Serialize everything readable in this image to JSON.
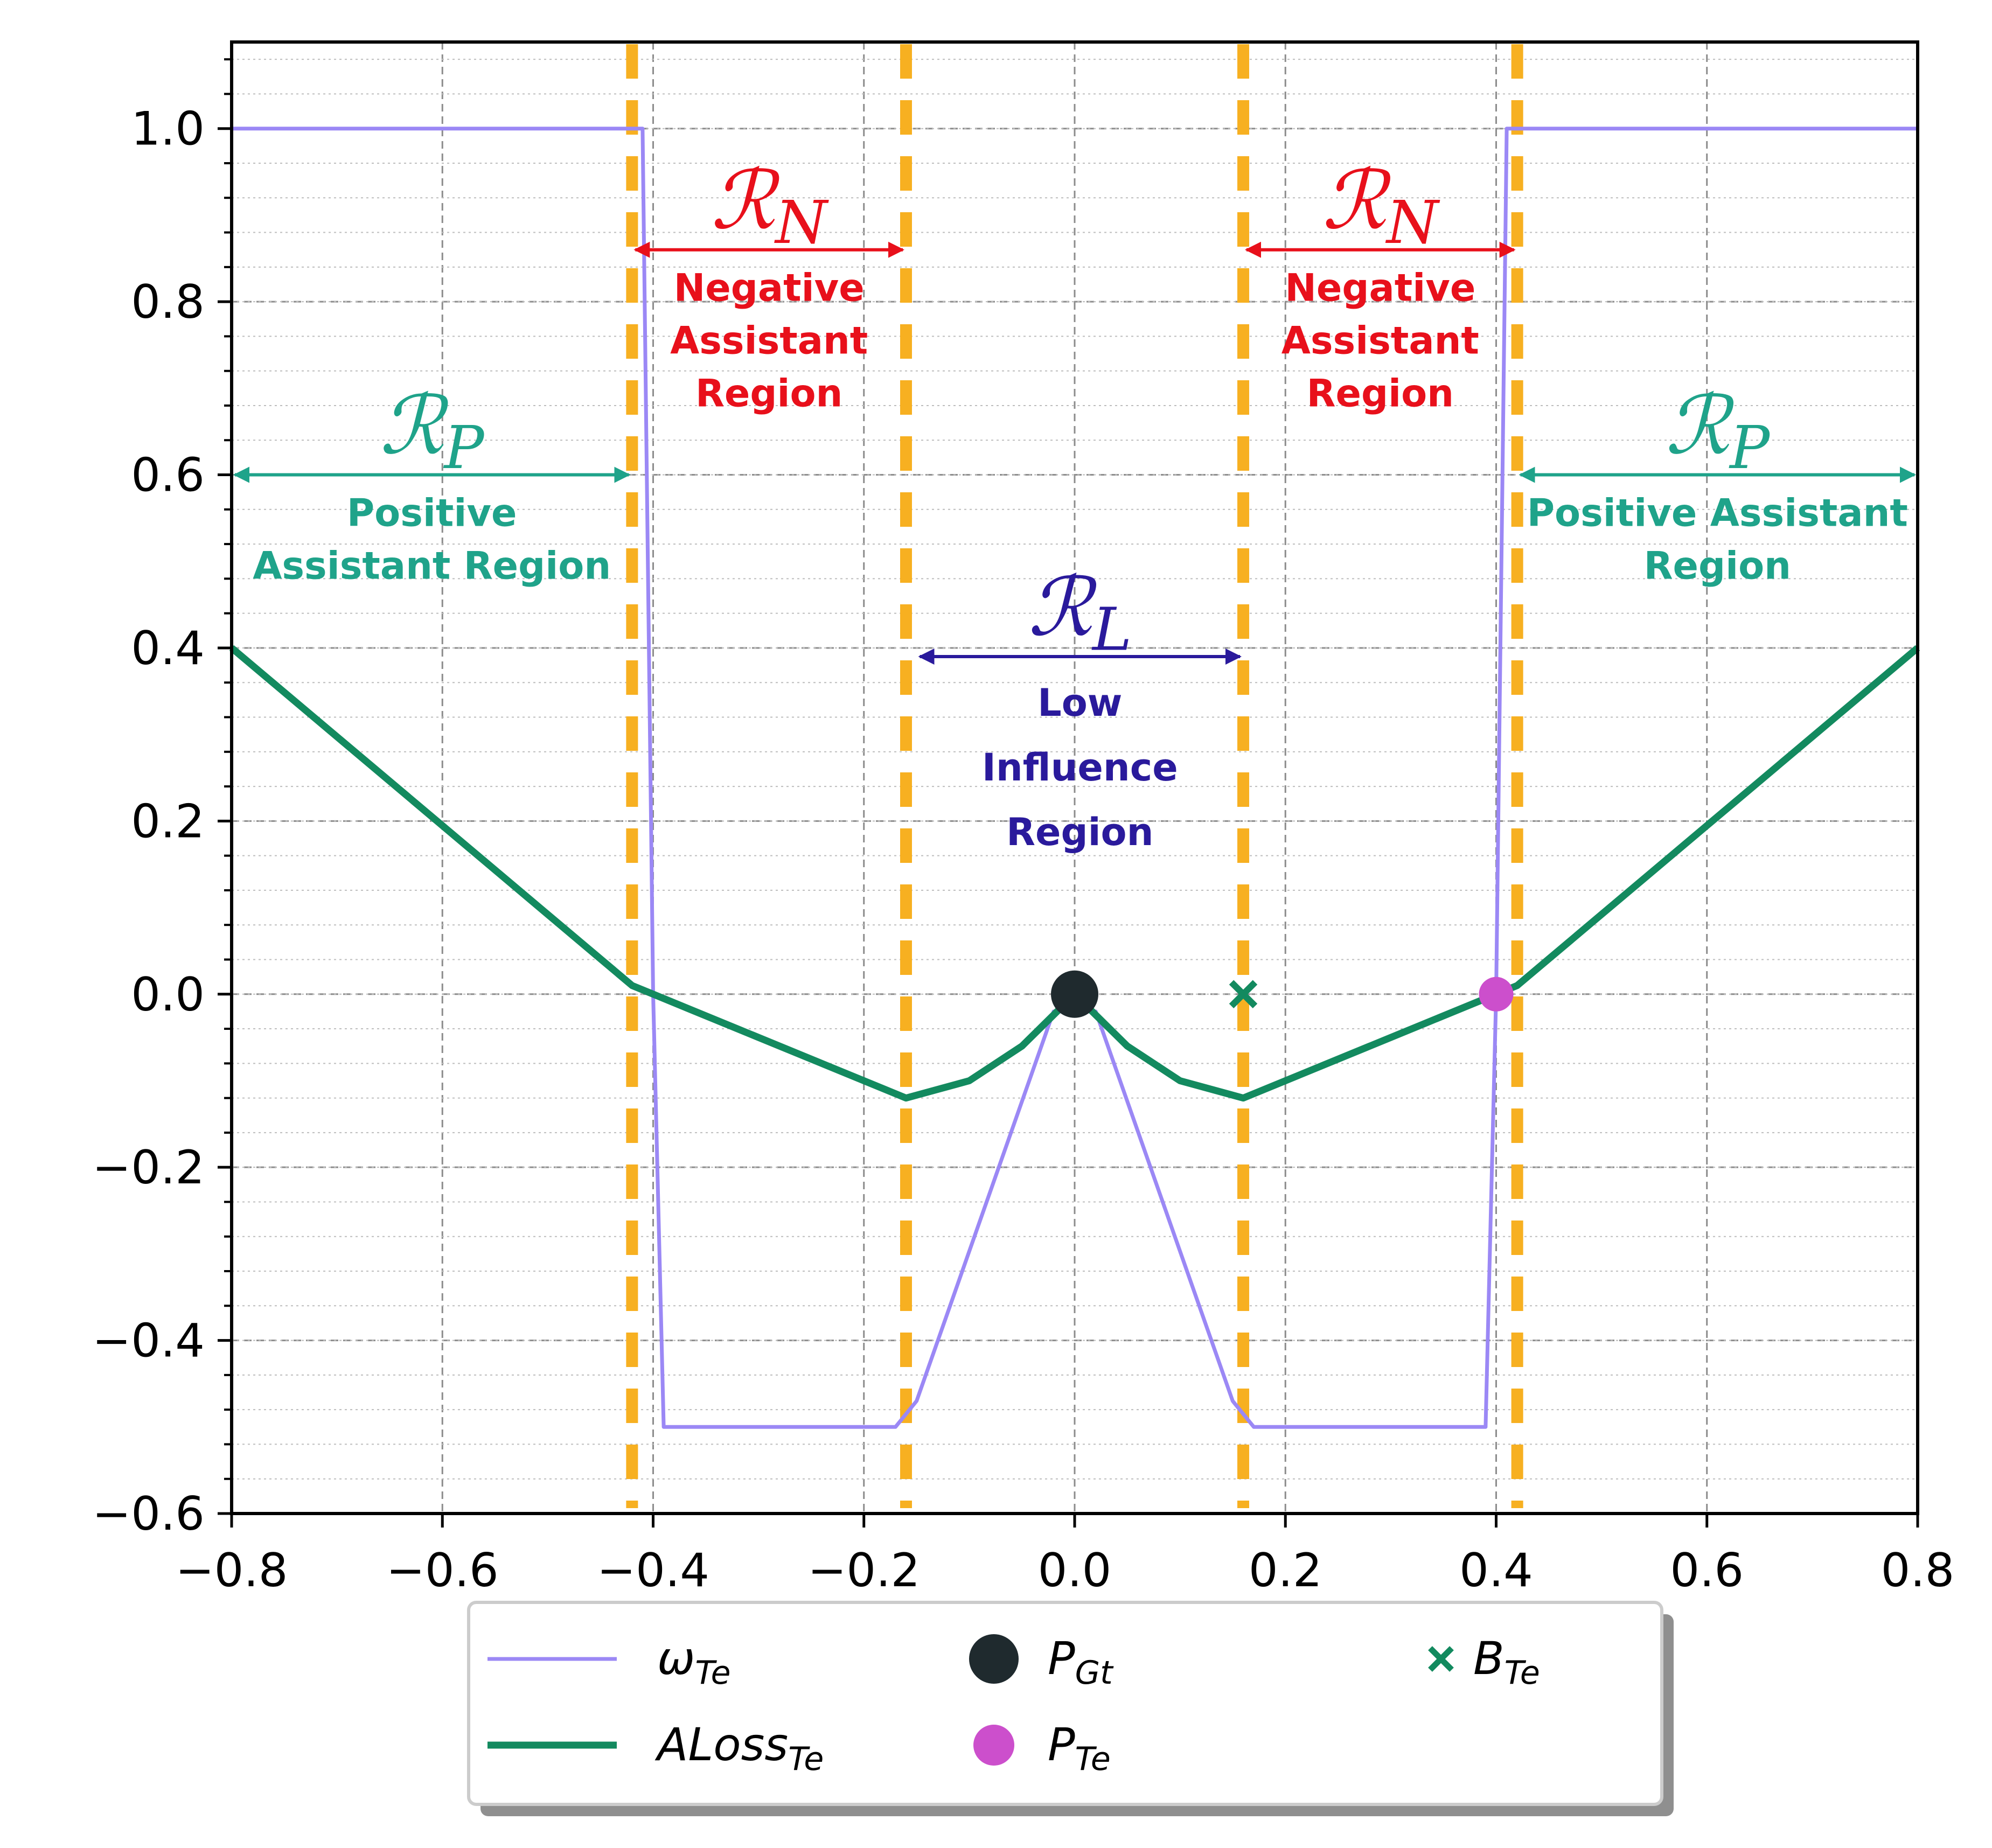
{
  "chart_data": {
    "type": "line",
    "xlim": [
      -0.8,
      0.8
    ],
    "ylim": [
      -0.6,
      1.1
    ],
    "x_ticks": [
      "−0.8",
      "−0.6",
      "−0.4",
      "−0.2",
      "0.0",
      "0.2",
      "0.4",
      "0.6",
      "0.8"
    ],
    "x_tick_values": [
      -0.8,
      -0.6,
      -0.4,
      -0.2,
      0.0,
      0.2,
      0.4,
      0.6,
      0.8
    ],
    "y_ticks": [
      "−0.6",
      "−0.4",
      "−0.2",
      "0.0",
      "0.2",
      "0.4",
      "0.6",
      "0.8",
      "1.0"
    ],
    "y_tick_values": [
      -0.6,
      -0.4,
      -0.2,
      0.0,
      0.2,
      0.4,
      0.6,
      0.8,
      1.0
    ],
    "grid": true,
    "legend_placement": "bottom-center, outside plot",
    "series": [
      {
        "name": "ω",
        "name_sub": "Te",
        "color": "#9b88f5",
        "x": [
          -0.8,
          -0.41,
          -0.4,
          -0.39,
          -0.17,
          -0.15,
          -0.02,
          0.0,
          0.02,
          0.15,
          0.17,
          0.39,
          0.4,
          0.41,
          0.8
        ],
        "y": [
          1.0,
          1.0,
          0.0,
          -0.5,
          -0.5,
          -0.47,
          -0.02,
          -0.02,
          -0.02,
          -0.47,
          -0.5,
          -0.5,
          0.0,
          1.0,
          1.0
        ]
      },
      {
        "name": "ALoss",
        "name_sub": "Te",
        "color": "#138a5f",
        "x": [
          -0.8,
          -0.42,
          -0.4,
          -0.2,
          -0.16,
          -0.1,
          -0.05,
          0.0,
          0.05,
          0.1,
          0.16,
          0.2,
          0.4,
          0.42,
          0.8
        ],
        "y": [
          0.4,
          0.01,
          0.0,
          -0.1,
          -0.12,
          -0.1,
          -0.06,
          0.0,
          -0.06,
          -0.1,
          -0.12,
          -0.1,
          0.0,
          0.01,
          0.4
        ]
      }
    ],
    "points": [
      {
        "name": "P",
        "name_sub": "Gt",
        "x": 0.0,
        "y": 0.0,
        "marker": "circle",
        "color": "#1f2a2e"
      },
      {
        "name": "P",
        "name_sub": "Te",
        "x": 0.4,
        "y": 0.0,
        "marker": "circle",
        "color": "#cc4fcc"
      },
      {
        "name": "B",
        "name_sub": "Te",
        "x": 0.16,
        "y": 0.0,
        "marker": "x",
        "color": "#138a5f"
      }
    ],
    "vlines": [
      -0.42,
      -0.16,
      0.16,
      0.42
    ],
    "vline_color": "#f7b021",
    "annotations": [
      {
        "symbol": "ℛ",
        "sub": "N",
        "label_lines": [
          "Negative",
          "Assistant",
          "Region"
        ],
        "color": "#e8101b",
        "x_from": -0.42,
        "x_to": -0.16,
        "arrow_y": 0.86
      },
      {
        "symbol": "ℛ",
        "sub": "N",
        "label_lines": [
          "Negative",
          "Assistant",
          "Region"
        ],
        "color": "#e8101b",
        "x_from": 0.16,
        "x_to": 0.42,
        "arrow_y": 0.86
      },
      {
        "symbol": "ℛ",
        "sub": "P",
        "label_lines": [
          "Positive",
          "Assistant Region"
        ],
        "color": "#1fa38a",
        "x_from": -0.8,
        "x_to": -0.42,
        "arrow_y": 0.6
      },
      {
        "symbol": "ℛ",
        "sub": "P",
        "label_lines": [
          "Positive Assistant",
          "Region"
        ],
        "color": "#1fa38a",
        "x_from": 0.42,
        "x_to": 0.8,
        "arrow_y": 0.6
      },
      {
        "symbol": "ℛ",
        "sub": "L",
        "label_lines": [
          "Low",
          "Influence",
          "Region"
        ],
        "color": "#2a1a9c",
        "x_from": -0.15,
        "x_to": 0.16,
        "arrow_y": 0.39
      }
    ]
  }
}
